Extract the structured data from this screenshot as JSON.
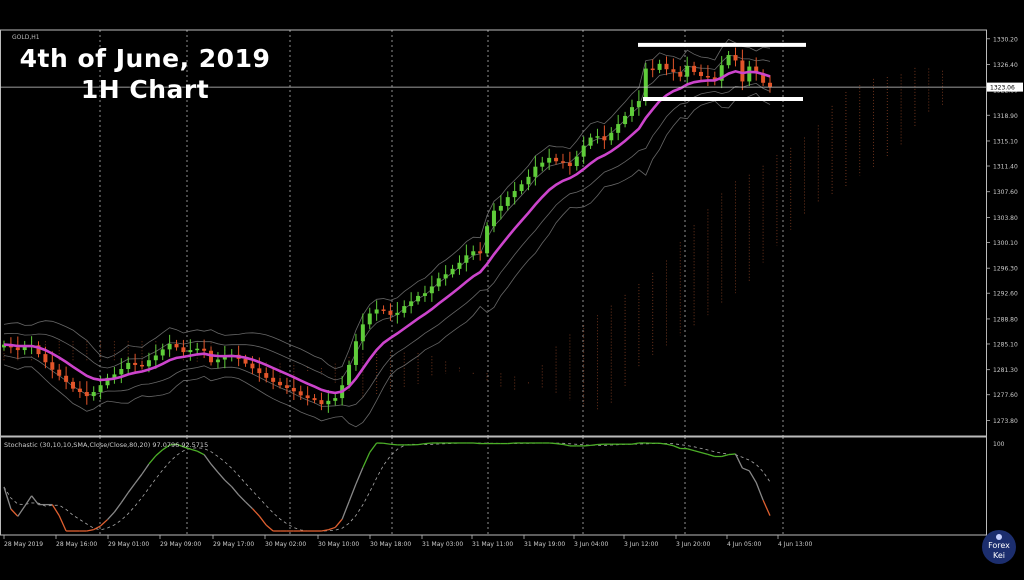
{
  "overlay": {
    "line1": "4th of June, 2019",
    "line2": "1H Chart"
  },
  "symbol_label": "GOLD,H1",
  "stochastic_label": "Stochastic (30,10,10,SMA,Close/Close,80,20) 97.0796 92.5715",
  "badge": {
    "line1": "Forex",
    "line2": "Kei"
  },
  "colors": {
    "bull": "#5fcc3a",
    "bear": "#e2552a",
    "ema": "#cc44cc",
    "band": "#8a8a8a",
    "cloud": "#7a3a20",
    "stoch_k": "#4caf28",
    "stoch_low": "#e06030",
    "grid": "#ffffff",
    "line": "#ffffff"
  },
  "chart_data": {
    "type": "candlestick",
    "symbol": "GOLD,H1",
    "ylim": [
      1271.5,
      1331.5
    ],
    "y_ticks": [
      "1330.20",
      "1326.40",
      "1322.60",
      "1318.90",
      "1315.10",
      "1311.40",
      "1307.60",
      "1303.80",
      "1300.10",
      "1296.30",
      "1292.60",
      "1288.80",
      "1285.10",
      "1281.30",
      "1277.60",
      "1273.80"
    ],
    "current_price_label": "1323.06",
    "current_price": 1323.06,
    "x_ticks": [
      "28 May 2019",
      "28 May 16:00",
      "29 May 01:00",
      "29 May 09:00",
      "29 May 17:00",
      "30 May 02:00",
      "30 May 10:00",
      "30 May 18:00",
      "31 May 03:00",
      "31 May 11:00",
      "31 May 19:00",
      "3 Jun 04:00",
      "3 Jun 12:00",
      "3 Jun 20:00",
      "4 Jun 05:00",
      "4 Jun 13:00"
    ],
    "close": [
      1285.0,
      1284.6,
      1284.2,
      1284.7,
      1284.9,
      1283.6,
      1282.4,
      1281.3,
      1280.4,
      1279.5,
      1278.5,
      1278.0,
      1277.4,
      1278.0,
      1279.0,
      1280.1,
      1280.6,
      1281.4,
      1282.3,
      1282.0,
      1281.8,
      1282.7,
      1283.4,
      1284.3,
      1285.1,
      1284.6,
      1283.9,
      1284.2,
      1284.4,
      1284.1,
      1282.4,
      1282.8,
      1283.2,
      1283.5,
      1282.9,
      1282.2,
      1281.5,
      1280.8,
      1280.1,
      1279.5,
      1279.0,
      1278.6,
      1278.1,
      1277.5,
      1277.1,
      1276.8,
      1276.2,
      1276.7,
      1277.1,
      1279.0,
      1282.0,
      1285.5,
      1288.0,
      1289.6,
      1290.2,
      1290.0,
      1289.4,
      1289.7,
      1290.7,
      1291.4,
      1292.2,
      1292.6,
      1293.6,
      1294.8,
      1295.4,
      1296.2,
      1297.1,
      1298.2,
      1298.8,
      1298.5,
      1302.5,
      1304.8,
      1305.5,
      1306.8,
      1307.7,
      1308.7,
      1309.8,
      1311.3,
      1311.9,
      1312.6,
      1312.1,
      1311.9,
      1311.4,
      1312.8,
      1314.4,
      1315.6,
      1315.8,
      1315.2,
      1316.3,
      1317.6,
      1318.8,
      1320.1,
      1321.0,
      1325.8,
      1325.6,
      1326.5,
      1325.7,
      1325.3,
      1324.6,
      1326.2,
      1325.3,
      1324.7,
      1324.5,
      1324.0,
      1326.3,
      1327.8,
      1327.0,
      1323.9,
      1326.1,
      1325.1,
      1323.7,
      1323.1
    ],
    "stochastic": {
      "levels": [
        80,
        20
      ],
      "k": 97.0796,
      "d": 92.5715,
      "scale_label": "100"
    },
    "annotations": [
      {
        "type": "horizontal_band",
        "from": 1329.3,
        "to": 1329.3,
        "color": "#ffffff",
        "label": ""
      },
      {
        "type": "horizontal_band",
        "from": 1321.3,
        "to": 1321.3,
        "color": "#ffffff",
        "label": ""
      }
    ]
  }
}
